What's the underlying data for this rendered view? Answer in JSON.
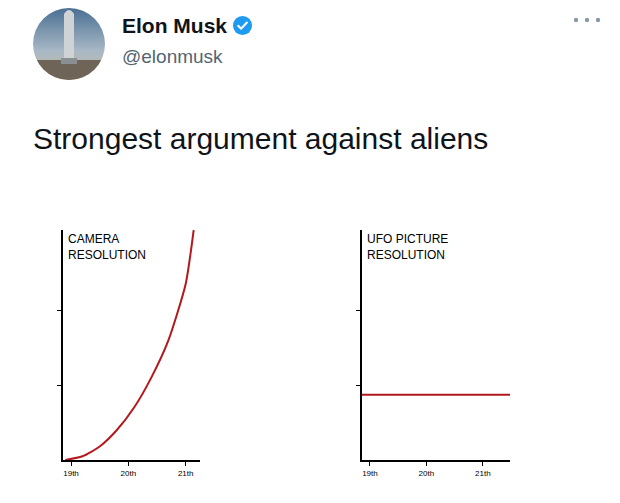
{
  "tweet": {
    "name": "Elon Musk",
    "handle": "@elonmusk",
    "text": "Strongest argument against aliens"
  },
  "chart_data": [
    {
      "type": "line",
      "y_label": "CAMERA RESOLUTION",
      "color": "#b3191c",
      "x": [
        18.9,
        19.2,
        19.5,
        19.8,
        20.1,
        20.4,
        20.7,
        21.0,
        21.14
      ],
      "values": [
        0,
        0.05,
        0.18,
        0.4,
        0.7,
        1.1,
        1.6,
        2.35,
        3.07
      ],
      "xlim": [
        18.86,
        21.25
      ],
      "xticks": [
        {
          "value": 19,
          "label": "19th"
        },
        {
          "value": 20,
          "label": "20th"
        },
        {
          "value": 21,
          "label": "21th"
        }
      ],
      "ylim": [
        0,
        3.07
      ],
      "yticks": [
        1,
        2
      ],
      "grid": false,
      "tick_labels": "x"
    },
    {
      "type": "line",
      "y_label": "UFO PICTURE RESOLUTION",
      "color": "#b3191c",
      "x": [
        18.86,
        21.48
      ],
      "values": [
        0.87,
        0.87
      ],
      "xlim": [
        18.86,
        21.48
      ],
      "xticks": [
        {
          "value": 19,
          "label": "19th"
        },
        {
          "value": 20,
          "label": "20th"
        },
        {
          "value": 21,
          "label": "21th"
        }
      ],
      "ylim": [
        0,
        3.07
      ],
      "yticks": [
        1,
        2
      ],
      "grid": false,
      "tick_labels": "x"
    }
  ]
}
